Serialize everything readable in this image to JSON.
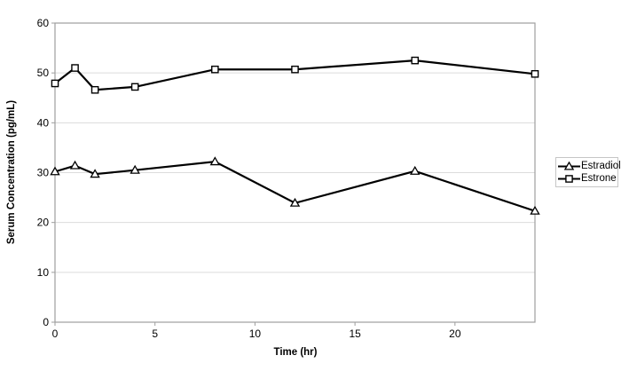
{
  "colors": {
    "series_line": "#000000",
    "marker_fill": "#ffffff",
    "gridline": "#dcdcdc",
    "plot_border": "#9e9e9e",
    "tick_text": "#000000",
    "legend_border": "#c6c6c6",
    "background": "#ffffff"
  },
  "chart_data": {
    "type": "line",
    "x": [
      0,
      1,
      2,
      4,
      8,
      12,
      18,
      24
    ],
    "series": [
      {
        "name": "Estradiol",
        "marker": "triangle",
        "values": [
          30.2,
          31.4,
          29.7,
          30.5,
          32.2,
          23.9,
          30.3,
          22.3
        ]
      },
      {
        "name": "Estrone",
        "marker": "square",
        "values": [
          47.9,
          51.0,
          46.6,
          47.2,
          50.7,
          50.7,
          52.5,
          49.8
        ]
      }
    ],
    "title": "",
    "xlabel": "Time (hr)",
    "ylabel": "Serum Concentration (pg/mL)",
    "xlim": [
      0,
      24
    ],
    "ylim": [
      0,
      60
    ],
    "xticks": [
      0,
      5,
      10,
      15,
      20
    ],
    "yticks": [
      0,
      10,
      20,
      30,
      40,
      50,
      60
    ],
    "grid": "horizontal-only",
    "legend_position": "right-outside"
  }
}
